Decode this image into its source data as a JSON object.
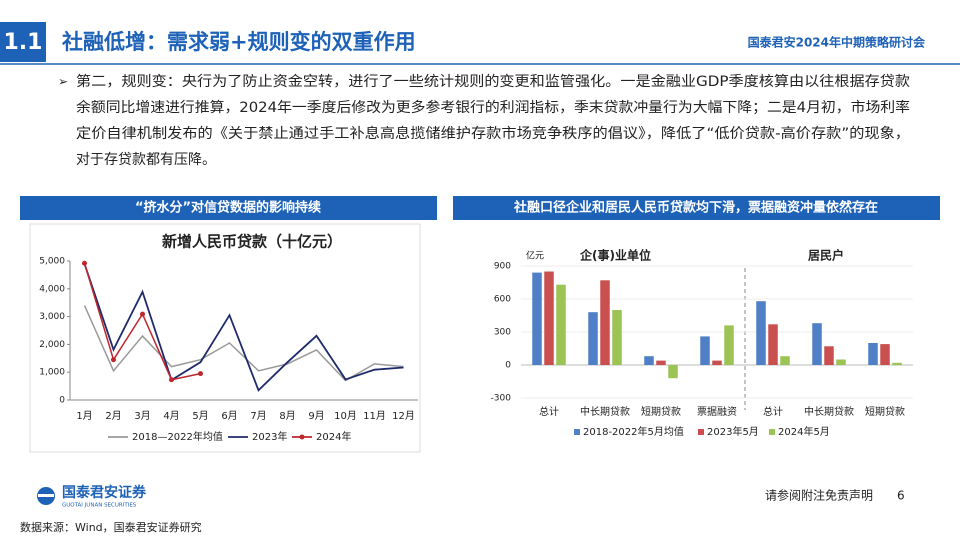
{
  "header": {
    "number": "1.1",
    "title": "社融低增：需求弱+规则变的双重作用",
    "event": "国泰君安2024年中期策略研讨会"
  },
  "body": {
    "bullet": "➢",
    "lines": [
      "第二，规则变：央行为了防止资金空转，进行了一些统计规则的变更和监管强化。一是金融业GDP季度核算由以往根据存贷款",
      "余额同比增速进行推算，2024年一季度后修改为更多参考银行的利润指标，季末贷款冲量行为大幅下降；二是4月初，市场利率",
      "定价自律机制发布的《关于禁止通过手工补息高息揽储维护存款市场竞争秩序的倡议》，降低了“低价贷款-高价存款”的现象，",
      "对于存贷款都有压降。"
    ]
  },
  "chart_data": [
    {
      "type": "line",
      "panel_title": "“挤水分”对信贷数据的影响持续",
      "title": "新增人民币贷款（十亿元）",
      "categories": [
        "1月",
        "2月",
        "3月",
        "4月",
        "5月",
        "6月",
        "7月",
        "8月",
        "9月",
        "10月",
        "11月",
        "12月"
      ],
      "series": [
        {
          "name": "2018—2022年均值",
          "color": "#9a9a9a",
          "values": [
            3400,
            1050,
            2300,
            1200,
            1450,
            2050,
            1050,
            1300,
            1800,
            700,
            1300,
            1200
          ]
        },
        {
          "name": "2023年",
          "color": "#1f2a6b",
          "values": [
            4900,
            1810,
            3890,
            720,
            1360,
            3050,
            350,
            1360,
            2310,
            740,
            1090,
            1170
          ]
        },
        {
          "name": "2024年",
          "color": "#c0262d",
          "marker": true,
          "values": [
            4920,
            1450,
            3090,
            730,
            950,
            null,
            null,
            null,
            null,
            null,
            null,
            null
          ]
        }
      ],
      "ylim": [
        0,
        5000
      ],
      "yticks": [
        0,
        {
          "value": 1000,
          "label": "1,000"
        },
        {
          "value": 2000,
          "label": "2,000"
        },
        {
          "value": 3000,
          "label": "3,000"
        },
        {
          "value": 4000,
          "label": "4,000"
        },
        {
          "value": 5000,
          "label": "5,000"
        }
      ]
    },
    {
      "type": "bar",
      "panel_title": "社融口径企业和居民人民币贷款均下滑，票据融资冲量依然存在",
      "annotations": [
        "亿元",
        "企(事)业单位",
        "居民户"
      ],
      "categories": [
        "总计",
        "中长期贷款",
        "短期贷款",
        "票据融资",
        "总计",
        "中长期贷款",
        "短期贷款"
      ],
      "series": [
        {
          "name": "2018-2022年5月均值",
          "color": "#4f7fc6",
          "values": [
            840,
            480,
            80,
            260,
            580,
            380,
            200
          ]
        },
        {
          "name": "2023年5月",
          "color": "#c9504f",
          "values": [
            850,
            770,
            40,
            40,
            370,
            170,
            190
          ]
        },
        {
          "name": "2024年5月",
          "color": "#9bc455",
          "values": [
            730,
            500,
            -120,
            360,
            80,
            50,
            20
          ]
        }
      ],
      "ylim": [
        -300,
        900
      ],
      "yticks": [
        -300,
        0,
        300,
        600,
        900
      ]
    }
  ],
  "footer": {
    "company": "国泰君安证券",
    "company_en": "GUOTAI JUNAN SECURITIES",
    "disclaimer": "请参阅附注免责声明",
    "page": "6",
    "source": "数据来源：Wind，国泰君安证券研究"
  }
}
